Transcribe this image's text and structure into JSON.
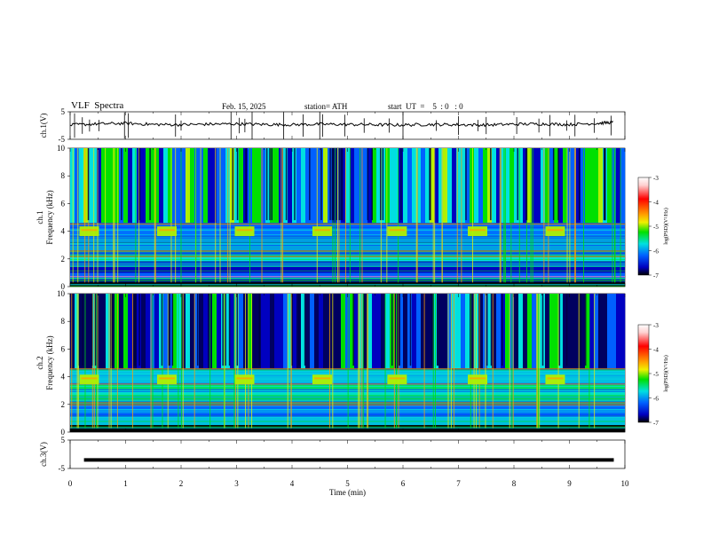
{
  "header": {
    "title": "VLF  Spectra",
    "date": "Feb. 15, 2025",
    "station": "station= ATH",
    "start_ut": "start  UT  =    5  : 0   : 0"
  },
  "chart_data": [
    {
      "type": "line",
      "panel": "ch1-waveform",
      "ylabel": "ch.1(V)",
      "ylim": [
        -5,
        5
      ],
      "y_ticks": [
        "5",
        "-5"
      ],
      "xlim": [
        0,
        10
      ],
      "x": [
        0,
        0.5,
        1,
        1.5,
        2,
        2.5,
        3,
        3.5,
        4,
        4.5,
        5,
        5.5,
        6,
        6.5,
        7,
        7.5,
        8,
        8.5,
        9,
        9.5,
        9.8
      ],
      "values": [
        0.2,
        0.6,
        0.8,
        0.4,
        0.3,
        0.5,
        0.6,
        0.4,
        0.3,
        0.5,
        0.4,
        0.3,
        0.2,
        0.4,
        0.3,
        0.2,
        0.5,
        0.6,
        0.4,
        0.8,
        1.2
      ],
      "spikes_min": [
        0.08,
        0.22,
        0.35,
        0.52,
        0.98,
        1.05,
        1.9,
        2.0,
        2.9,
        3.05,
        3.15,
        3.28,
        3.85,
        4.2,
        4.5,
        4.55,
        4.95,
        5.3,
        5.75,
        6.0,
        6.6,
        7.0,
        7.35,
        7.5,
        8.05,
        8.45,
        8.65,
        8.95,
        9.1,
        9.45,
        9.75
      ],
      "color": "#000000"
    },
    {
      "type": "heatmap",
      "panel": "ch1-spectrogram",
      "ylabel": "ch.1\nFrequency  (kHz)",
      "xlim": [
        0,
        10
      ],
      "ylim": [
        0,
        10
      ],
      "y_ticks": [
        "0",
        "2",
        "4",
        "6",
        "8",
        "10"
      ],
      "colorbar": {
        "label": "log(PSD)(V²/Hz)",
        "range": [
          -7,
          -3
        ],
        "ticks": [
          "-3",
          "-4",
          "-5",
          "-6",
          "-7"
        ]
      },
      "bursts_min": [
        0.2,
        1.6,
        3.0,
        4.4,
        5.75,
        7.2,
        8.6
      ],
      "burst_freq_khz": 4.0,
      "cut_off_khz": 10
    },
    {
      "type": "heatmap",
      "panel": "ch2-spectrogram",
      "ylabel": "ch.2\nFrequency  (kHz)",
      "xlim": [
        0,
        10
      ],
      "ylim": [
        0,
        10
      ],
      "y_ticks": [
        "0",
        "2",
        "4",
        "6",
        "8",
        "10"
      ],
      "colorbar": {
        "label": "log(PSD)(V²/Hz)",
        "range": [
          -7,
          -3
        ],
        "ticks": [
          "-3",
          "-4",
          "-5",
          "-6",
          "-7"
        ]
      },
      "bursts_min": [
        0.2,
        1.6,
        3.0,
        4.4,
        5.75,
        7.2,
        8.6
      ],
      "burst_freq_khz": 3.8
    },
    {
      "type": "line",
      "panel": "ch3-waveform",
      "ylabel": "ch.3(V)",
      "ylim": [
        -5,
        5
      ],
      "y_ticks": [
        "5",
        "-5"
      ],
      "xlim": [
        0,
        10
      ],
      "x": [
        0.25,
        9.8
      ],
      "values": [
        -2.0,
        -2.0
      ],
      "color": "#000000"
    }
  ],
  "x_axis": {
    "label": "Time  (min)",
    "ticks": [
      "0",
      "1",
      "2",
      "3",
      "4",
      "5",
      "6",
      "7",
      "8",
      "9",
      "10"
    ]
  },
  "colormap": [
    "#ffffff",
    "#ff0000",
    "#ffa000",
    "#f0f000",
    "#00e000",
    "#00e0e0",
    "#0060ff",
    "#0000c0",
    "#000040",
    "#000000"
  ]
}
